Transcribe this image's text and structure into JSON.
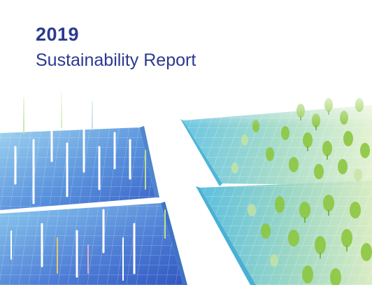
{
  "cover": {
    "year": "2019",
    "title": "Sustainability Report",
    "colors": {
      "title": "#2b3990",
      "panel_blue_light": "#7ec3ea",
      "panel_blue_dark": "#3a6fcf",
      "panel_frame": "#5bb8d6",
      "tree_green": "#8cc63f",
      "tree_green_light": "#c6e3a0"
    },
    "illustration": {
      "left_panels": "solar-panels-blue",
      "right_panels": "solar-panels-with-trees"
    }
  }
}
